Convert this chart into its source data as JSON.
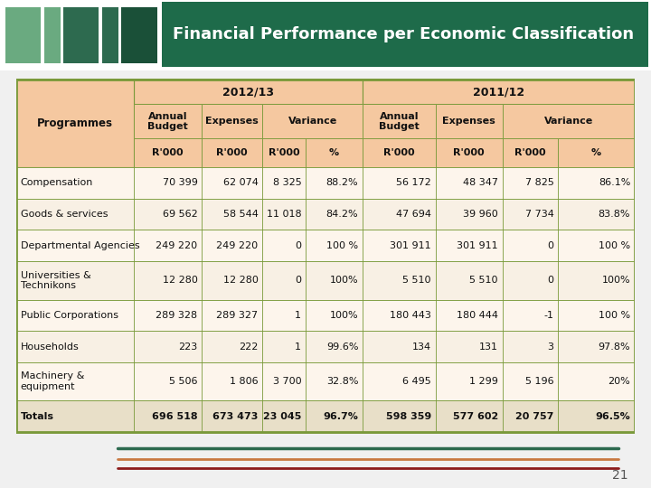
{
  "title": "Financial Performance per Economic Classification",
  "title_bg": "#1e6b4a",
  "header_peach": "#f5c8a0",
  "header_peach_dark": "#f0b880",
  "border_color": "#7a9a3a",
  "stripe1": "#fdf5ec",
  "stripe2": "#f8f0e4",
  "totals_bg": "#e8dfc8",
  "sq_colors": [
    "#7ab898",
    "#7ab898",
    "#2d6a4f",
    "#2d6a4f",
    "#1a5038"
  ],
  "rows": [
    [
      "Compensation",
      "70 399",
      "62 074",
      "8 325",
      "88.2%",
      "56 172",
      "48 347",
      "7 825",
      "86.1%"
    ],
    [
      "Goods & services",
      "69 562",
      "58 544",
      "11 018",
      "84.2%",
      "47 694",
      "39 960",
      "7 734",
      "83.8%"
    ],
    [
      "Departmental Agencies",
      "249 220",
      "249 220",
      "0",
      "100 %",
      "301 911",
      "301 911",
      "0",
      "100 %"
    ],
    [
      "Universities &\nTechnikons",
      "12 280",
      "12 280",
      "0",
      "100%",
      "5 510",
      "5 510",
      "0",
      "100%"
    ],
    [
      "Public Corporations",
      "289 328",
      "289 327",
      "1",
      "100%",
      "180 443",
      "180 444",
      "-1",
      "100 %"
    ],
    [
      "Households",
      "223",
      "222",
      "1",
      "99.6%",
      "134",
      "131",
      "3",
      "97.8%"
    ],
    [
      "Machinery &\nequipment",
      "5 506",
      "1 806",
      "3 700",
      "32.8%",
      "6 495",
      "1 299",
      "5 196",
      "20%"
    ],
    [
      "Totals",
      "696 518",
      "673 473",
      "23 045",
      "96.7%",
      "598 359",
      "577 602",
      "20 757",
      "96.5%"
    ]
  ],
  "col_aligns": [
    "left",
    "right",
    "right",
    "right",
    "right",
    "right",
    "right",
    "right",
    "right"
  ],
  "page_num": "21",
  "footer_colors": [
    "#2d6a4f",
    "#c87840",
    "#8B1a1a"
  ],
  "bg_color": "#f0f0f0"
}
